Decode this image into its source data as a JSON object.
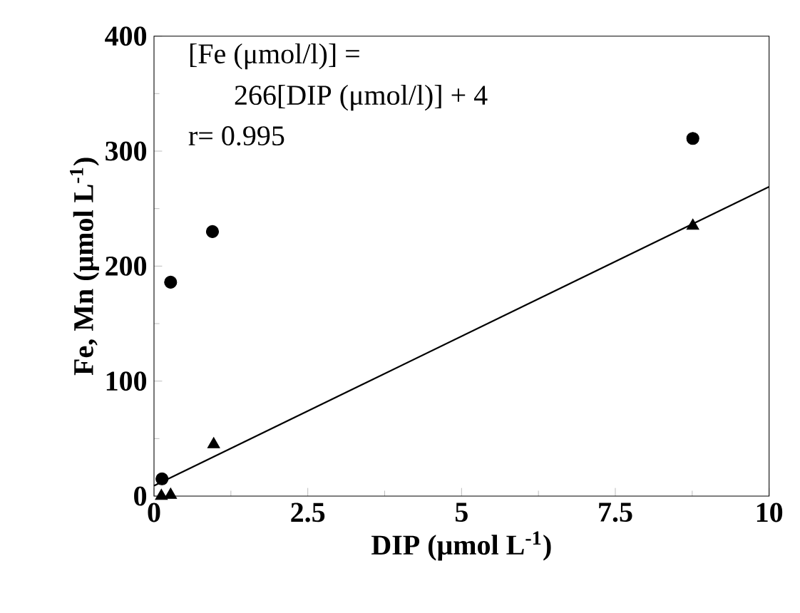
{
  "chart_data": {
    "type": "scatter",
    "xlabel": "DIP (μmol L$^{-1}$)",
    "ylabel": "Fe, Mn (μmol L$^{-1}$)",
    "xlim": [
      0,
      10
    ],
    "xticks": [
      0,
      2.5,
      5,
      7.5,
      10
    ],
    "ylim": [
      0,
      400
    ],
    "yticks": [
      0,
      100,
      200,
      300,
      400
    ],
    "annotations": [
      "[Fe (μmol/l)] =",
      "266[DIP (μmol/l)] + 4",
      "r= 0.995"
    ],
    "series": [
      {
        "marker": "circle",
        "color": "#000000",
        "x": [
          0.13,
          0.27,
          0.95,
          8.76
        ],
        "values": [
          15,
          186,
          230,
          311
        ]
      },
      {
        "marker": "triangle",
        "color": "#000000",
        "x": [
          0.12,
          0.27,
          0.97,
          8.76
        ],
        "values": [
          0,
          1,
          45,
          235
        ]
      },
      {
        "type": "line",
        "marker": "none",
        "line_style": "solid",
        "color": "#000000",
        "x": [
          0,
          10
        ],
        "values": [
          9,
          269
        ]
      }
    ]
  }
}
